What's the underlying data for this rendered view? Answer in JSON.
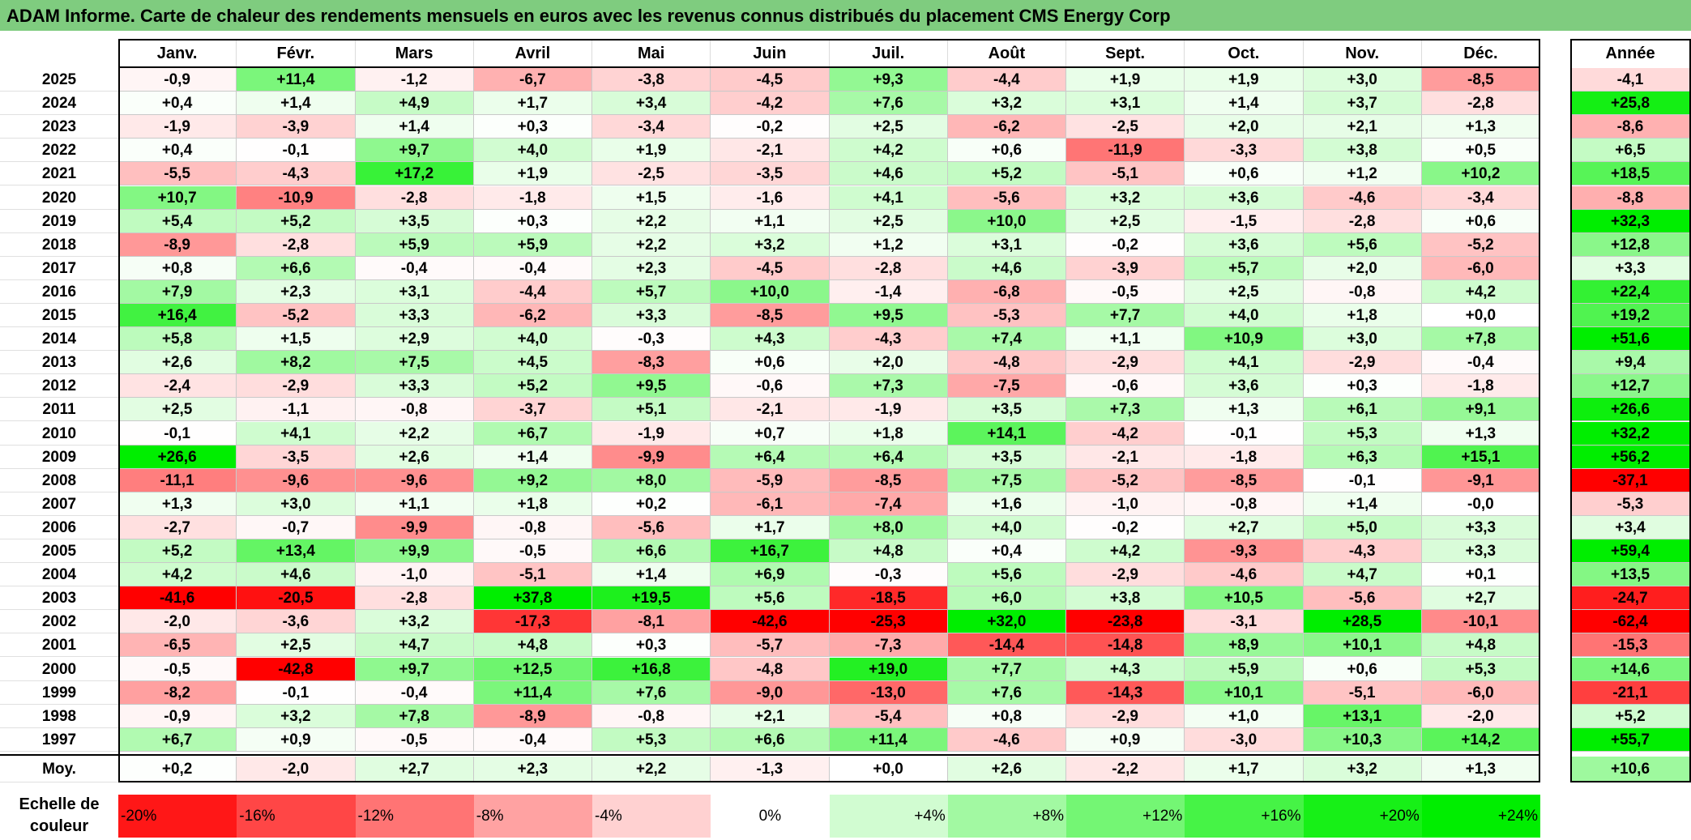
{
  "title": "ADAM Informe. Carte de chaleur des rendements mensuels en euros avec les revenus connus distribués du placement CMS Energy Corp",
  "chart_data": {
    "type": "heatmap",
    "title": "ADAM Informe. Carte de chaleur des rendements mensuels en euros avec les revenus connus distribués du placement CMS Energy Corp",
    "columns": [
      "Janv.",
      "Févr.",
      "Mars",
      "Avril",
      "Mai",
      "Juin",
      "Juil.",
      "Août",
      "Sept.",
      "Oct.",
      "Nov.",
      "Déc."
    ],
    "year_column_label": "Année",
    "rows": [
      {
        "year": "2025",
        "values": [
          "-0,9",
          "+11,4",
          "-1,2",
          "-6,7",
          "-3,8",
          "-4,5",
          "+9,3",
          "-4,4",
          "+1,9",
          "+1,9",
          "+3,0",
          "-8,5"
        ],
        "annual": "-4,1"
      },
      {
        "year": "2024",
        "values": [
          "+0,4",
          "+1,4",
          "+4,9",
          "+1,7",
          "+3,4",
          "-4,2",
          "+7,6",
          "+3,2",
          "+3,1",
          "+1,4",
          "+3,7",
          "-2,8"
        ],
        "annual": "+25,8"
      },
      {
        "year": "2023",
        "values": [
          "-1,9",
          "-3,9",
          "+1,4",
          "+0,3",
          "-3,4",
          "-0,2",
          "+2,5",
          "-6,2",
          "-2,5",
          "+2,0",
          "+2,1",
          "+1,3"
        ],
        "annual": "-8,6"
      },
      {
        "year": "2022",
        "values": [
          "+0,4",
          "-0,1",
          "+9,7",
          "+4,0",
          "+1,9",
          "-2,1",
          "+4,2",
          "+0,6",
          "-11,9",
          "-3,3",
          "+3,8",
          "+0,5"
        ],
        "annual": "+6,5"
      },
      {
        "year": "2021",
        "values": [
          "-5,5",
          "-4,3",
          "+17,2",
          "+1,9",
          "-2,5",
          "-3,5",
          "+4,6",
          "+5,2",
          "-5,1",
          "+0,6",
          "+1,2",
          "+10,2"
        ],
        "annual": "+18,5"
      },
      {
        "year": "2020",
        "values": [
          "+10,7",
          "-10,9",
          "-2,8",
          "-1,8",
          "+1,5",
          "-1,6",
          "+4,1",
          "-5,6",
          "+3,2",
          "+3,6",
          "-4,6",
          "-3,4"
        ],
        "annual": "-8,8"
      },
      {
        "year": "2019",
        "values": [
          "+5,4",
          "+5,2",
          "+3,5",
          "+0,3",
          "+2,2",
          "+1,1",
          "+2,5",
          "+10,0",
          "+2,5",
          "-1,5",
          "-2,8",
          "+0,6"
        ],
        "annual": "+32,3"
      },
      {
        "year": "2018",
        "values": [
          "-8,9",
          "-2,8",
          "+5,9",
          "+5,9",
          "+2,2",
          "+3,2",
          "+1,2",
          "+3,1",
          "-0,2",
          "+3,6",
          "+5,6",
          "-5,2"
        ],
        "annual": "+12,8"
      },
      {
        "year": "2017",
        "values": [
          "+0,8",
          "+6,6",
          "-0,4",
          "-0,4",
          "+2,3",
          "-4,5",
          "-2,8",
          "+4,6",
          "-3,9",
          "+5,7",
          "+2,0",
          "-6,0"
        ],
        "annual": "+3,3"
      },
      {
        "year": "2016",
        "values": [
          "+7,9",
          "+2,3",
          "+3,1",
          "-4,4",
          "+5,7",
          "+10,0",
          "-1,4",
          "-6,8",
          "-0,5",
          "+2,5",
          "-0,8",
          "+4,2"
        ],
        "annual": "+22,4"
      },
      {
        "year": "2015",
        "values": [
          "+16,4",
          "-5,2",
          "+3,3",
          "-6,2",
          "+3,3",
          "-8,5",
          "+9,5",
          "-5,3",
          "+7,7",
          "+4,0",
          "+1,8",
          "+0,0"
        ],
        "annual": "+19,2"
      },
      {
        "year": "2014",
        "values": [
          "+5,8",
          "+1,5",
          "+2,9",
          "+4,0",
          "-0,3",
          "+4,3",
          "-4,3",
          "+7,4",
          "+1,1",
          "+10,9",
          "+3,0",
          "+7,8"
        ],
        "annual": "+51,6"
      },
      {
        "year": "2013",
        "values": [
          "+2,6",
          "+8,2",
          "+7,5",
          "+4,5",
          "-8,3",
          "+0,6",
          "+2,0",
          "-4,8",
          "-2,9",
          "+4,1",
          "-2,9",
          "-0,4"
        ],
        "annual": "+9,4"
      },
      {
        "year": "2012",
        "values": [
          "-2,4",
          "-2,9",
          "+3,3",
          "+5,2",
          "+9,5",
          "-0,6",
          "+7,3",
          "-7,5",
          "-0,6",
          "+3,6",
          "+0,3",
          "-1,8"
        ],
        "annual": "+12,7"
      },
      {
        "year": "2011",
        "values": [
          "+2,5",
          "-1,1",
          "-0,8",
          "-3,7",
          "+5,1",
          "-2,1",
          "-1,9",
          "+3,5",
          "+7,3",
          "+1,3",
          "+6,1",
          "+9,1"
        ],
        "annual": "+26,6"
      },
      {
        "year": "2010",
        "values": [
          "-0,1",
          "+4,1",
          "+2,2",
          "+6,7",
          "-1,9",
          "+0,7",
          "+1,8",
          "+14,1",
          "-4,2",
          "-0,1",
          "+5,3",
          "+1,3"
        ],
        "annual": "+32,2"
      },
      {
        "year": "2009",
        "values": [
          "+26,6",
          "-3,5",
          "+2,6",
          "+1,4",
          "-9,9",
          "+6,4",
          "+6,4",
          "+3,5",
          "-2,1",
          "-1,8",
          "+6,3",
          "+15,1"
        ],
        "annual": "+56,2"
      },
      {
        "year": "2008",
        "values": [
          "-11,1",
          "-9,6",
          "-9,6",
          "+9,2",
          "+8,0",
          "-5,9",
          "-8,5",
          "+7,5",
          "-5,2",
          "-8,5",
          "-0,1",
          "-9,1"
        ],
        "annual": "-37,1"
      },
      {
        "year": "2007",
        "values": [
          "+1,3",
          "+3,0",
          "+1,1",
          "+1,8",
          "+0,2",
          "-6,1",
          "-7,4",
          "+1,6",
          "-1,0",
          "-0,8",
          "+1,4",
          "-0,0"
        ],
        "annual": "-5,3"
      },
      {
        "year": "2006",
        "values": [
          "-2,7",
          "-0,7",
          "-9,9",
          "-0,8",
          "-5,6",
          "+1,7",
          "+8,0",
          "+4,0",
          "-0,2",
          "+2,7",
          "+5,0",
          "+3,3"
        ],
        "annual": "+3,4"
      },
      {
        "year": "2005",
        "values": [
          "+5,2",
          "+13,4",
          "+9,9",
          "-0,5",
          "+6,6",
          "+16,7",
          "+4,8",
          "+0,4",
          "+4,2",
          "-9,3",
          "-4,3",
          "+3,3"
        ],
        "annual": "+59,4"
      },
      {
        "year": "2004",
        "values": [
          "+4,2",
          "+4,6",
          "-1,0",
          "-5,1",
          "+1,4",
          "+6,9",
          "-0,3",
          "+5,6",
          "-2,9",
          "-4,6",
          "+4,7",
          "+0,1"
        ],
        "annual": "+13,5"
      },
      {
        "year": "2003",
        "values": [
          "-41,6",
          "-20,5",
          "-2,8",
          "+37,8",
          "+19,5",
          "+5,6",
          "-18,5",
          "+6,0",
          "+3,8",
          "+10,5",
          "-5,6",
          "+2,7"
        ],
        "annual": "-24,7"
      },
      {
        "year": "2002",
        "values": [
          "-2,0",
          "-3,6",
          "+3,2",
          "-17,3",
          "-8,1",
          "-42,6",
          "-25,3",
          "+32,0",
          "-23,8",
          "-3,1",
          "+28,5",
          "-10,1"
        ],
        "annual": "-62,4"
      },
      {
        "year": "2001",
        "values": [
          "-6,5",
          "+2,5",
          "+4,7",
          "+4,8",
          "+0,3",
          "-5,7",
          "-7,3",
          "-14,4",
          "-14,8",
          "+8,9",
          "+10,1",
          "+4,8"
        ],
        "annual": "-15,3"
      },
      {
        "year": "2000",
        "values": [
          "-0,5",
          "-42,8",
          "+9,7",
          "+12,5",
          "+16,8",
          "-4,8",
          "+19,0",
          "+7,7",
          "+4,3",
          "+5,9",
          "+0,6",
          "+5,3"
        ],
        "annual": "+14,6"
      },
      {
        "year": "1999",
        "values": [
          "-8,2",
          "-0,1",
          "-0,4",
          "+11,4",
          "+7,6",
          "-9,0",
          "-13,0",
          "+7,6",
          "-14,3",
          "+10,1",
          "-5,1",
          "-6,0"
        ],
        "annual": "-21,1"
      },
      {
        "year": "1998",
        "values": [
          "-0,9",
          "+3,2",
          "+7,8",
          "-8,9",
          "-0,8",
          "+2,1",
          "-5,4",
          "+0,8",
          "-2,9",
          "+1,0",
          "+13,1",
          "-2,0"
        ],
        "annual": "+5,2"
      },
      {
        "year": "1997",
        "values": [
          "+6,7",
          "+0,9",
          "-0,5",
          "-0,4",
          "+5,3",
          "+6,6",
          "+11,4",
          "-4,6",
          "+0,9",
          "-3,0",
          "+10,3",
          "+14,2"
        ],
        "annual": "+55,7"
      }
    ],
    "average": {
      "label": "Moy.",
      "values": [
        "+0,2",
        "-2,0",
        "+2,7",
        "+2,3",
        "+2,2",
        "-1,3",
        "+0,0",
        "+2,6",
        "-2,2",
        "+1,7",
        "+3,2",
        "+1,3"
      ],
      "annual": "+10,6"
    },
    "legend": {
      "label": "Echelle de couleur",
      "steps": [
        "-20%",
        "-16%",
        "-12%",
        "-8%",
        "-4%",
        "0%",
        "+4%",
        "+8%",
        "+12%",
        "+16%",
        "+20%",
        "+24%"
      ],
      "step_values": [
        -20,
        -16,
        -12,
        -8,
        -4,
        0,
        4,
        8,
        12,
        16,
        20,
        24
      ]
    },
    "colors": {
      "negative_max": "#ff0000",
      "neutral": "#ffffff",
      "positive_max": "#00ee00",
      "title_bar": "#7fcc7f"
    }
  }
}
